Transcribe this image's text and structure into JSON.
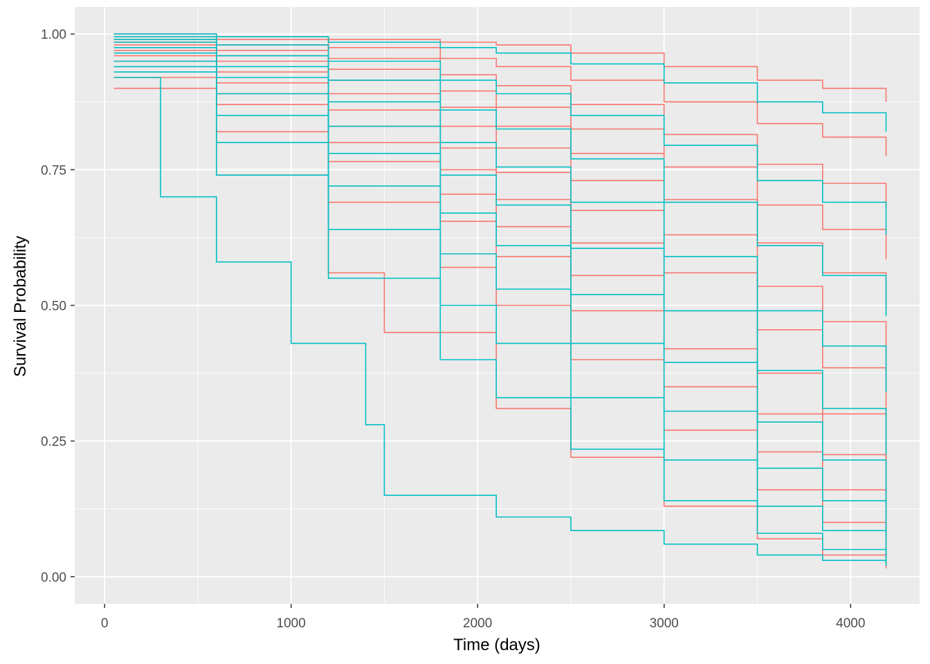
{
  "chart_data": {
    "type": "line",
    "style": "step",
    "xlabel": "Time (days)",
    "ylabel": "Survival Probability",
    "xlim": [
      -160,
      4370
    ],
    "ylim": [
      -0.05,
      1.05
    ],
    "xticks": [
      {
        "value": 0,
        "label": "0"
      },
      {
        "value": 1000,
        "label": "1000"
      },
      {
        "value": 2000,
        "label": "2000"
      },
      {
        "value": 3000,
        "label": "3000"
      },
      {
        "value": 4000,
        "label": "4000"
      }
    ],
    "yticks": [
      {
        "value": 0.0,
        "label": "0.00"
      },
      {
        "value": 0.25,
        "label": "0.25"
      },
      {
        "value": 0.5,
        "label": "0.50"
      },
      {
        "value": 0.75,
        "label": "0.75"
      },
      {
        "value": 1.0,
        "label": "1.00"
      }
    ],
    "grid": true,
    "legend": "none",
    "colors": {
      "panel": "#ebebeb",
      "grid": "#ffffff",
      "group_a": "#f8766d",
      "group_b": "#00bfc4"
    },
    "time_range": [
      50,
      4190
    ],
    "series": [
      {
        "color": "#f8766d",
        "points": [
          [
            50,
            1.0
          ],
          [
            600,
            0.995
          ],
          [
            1200,
            0.99
          ],
          [
            1800,
            0.985
          ],
          [
            2100,
            0.98
          ],
          [
            2500,
            0.965
          ],
          [
            3000,
            0.94
          ],
          [
            3500,
            0.915
          ],
          [
            3850,
            0.9
          ],
          [
            4190,
            0.875
          ]
        ]
      },
      {
        "color": "#f8766d",
        "points": [
          [
            50,
            1.0
          ],
          [
            600,
            0.99
          ],
          [
            1200,
            0.975
          ],
          [
            1800,
            0.955
          ],
          [
            2100,
            0.94
          ],
          [
            2500,
            0.915
          ],
          [
            3000,
            0.875
          ],
          [
            3500,
            0.835
          ],
          [
            3850,
            0.81
          ],
          [
            4190,
            0.775
          ]
        ]
      },
      {
        "color": "#f8766d",
        "points": [
          [
            50,
            0.995
          ],
          [
            600,
            0.98
          ],
          [
            1200,
            0.955
          ],
          [
            1800,
            0.925
          ],
          [
            2100,
            0.905
          ],
          [
            2500,
            0.87
          ],
          [
            3000,
            0.815
          ],
          [
            3500,
            0.76
          ],
          [
            3850,
            0.725
          ],
          [
            4190,
            0.68
          ]
        ]
      },
      {
        "color": "#f8766d",
        "points": [
          [
            50,
            0.99
          ],
          [
            600,
            0.97
          ],
          [
            1200,
            0.935
          ],
          [
            1800,
            0.895
          ],
          [
            2100,
            0.865
          ],
          [
            2500,
            0.825
          ],
          [
            3000,
            0.755
          ],
          [
            3500,
            0.685
          ],
          [
            3850,
            0.64
          ],
          [
            4190,
            0.585
          ]
        ]
      },
      {
        "color": "#f8766d",
        "points": [
          [
            50,
            0.985
          ],
          [
            600,
            0.96
          ],
          [
            1200,
            0.915
          ],
          [
            1800,
            0.865
          ],
          [
            2100,
            0.83
          ],
          [
            2500,
            0.78
          ],
          [
            3000,
            0.695
          ],
          [
            3500,
            0.615
          ],
          [
            3850,
            0.56
          ],
          [
            4190,
            0.495
          ]
        ]
      },
      {
        "color": "#f8766d",
        "points": [
          [
            50,
            0.98
          ],
          [
            600,
            0.95
          ],
          [
            1200,
            0.89
          ],
          [
            1800,
            0.83
          ],
          [
            2100,
            0.79
          ],
          [
            2500,
            0.73
          ],
          [
            3000,
            0.63
          ],
          [
            3500,
            0.535
          ],
          [
            3850,
            0.47
          ],
          [
            4190,
            0.39
          ]
        ]
      },
      {
        "color": "#f8766d",
        "points": [
          [
            50,
            0.97
          ],
          [
            600,
            0.93
          ],
          [
            1200,
            0.86
          ],
          [
            1800,
            0.79
          ],
          [
            2100,
            0.745
          ],
          [
            2500,
            0.675
          ],
          [
            3000,
            0.56
          ],
          [
            3500,
            0.455
          ],
          [
            3850,
            0.385
          ],
          [
            4190,
            0.3
          ]
        ]
      },
      {
        "color": "#f8766d",
        "points": [
          [
            50,
            0.96
          ],
          [
            600,
            0.91
          ],
          [
            1200,
            0.83
          ],
          [
            1800,
            0.75
          ],
          [
            2100,
            0.695
          ],
          [
            2500,
            0.615
          ],
          [
            3000,
            0.49
          ],
          [
            3500,
            0.375
          ],
          [
            3850,
            0.3
          ],
          [
            4190,
            0.21
          ]
        ]
      },
      {
        "color": "#f8766d",
        "points": [
          [
            50,
            0.95
          ],
          [
            600,
            0.89
          ],
          [
            1200,
            0.8
          ],
          [
            1800,
            0.705
          ],
          [
            2100,
            0.645
          ],
          [
            2500,
            0.555
          ],
          [
            3000,
            0.42
          ],
          [
            3500,
            0.3
          ],
          [
            3850,
            0.225
          ],
          [
            4190,
            0.135
          ]
        ]
      },
      {
        "color": "#f8766d",
        "points": [
          [
            50,
            0.94
          ],
          [
            600,
            0.87
          ],
          [
            1200,
            0.765
          ],
          [
            1800,
            0.655
          ],
          [
            2100,
            0.59
          ],
          [
            2500,
            0.49
          ],
          [
            3000,
            0.35
          ],
          [
            3500,
            0.23
          ],
          [
            3850,
            0.16
          ],
          [
            4190,
            0.075
          ]
        ]
      },
      {
        "color": "#f8766d",
        "points": [
          [
            50,
            0.92
          ],
          [
            600,
            0.82
          ],
          [
            1200,
            0.69
          ],
          [
            1800,
            0.57
          ],
          [
            2100,
            0.5
          ],
          [
            2500,
            0.4
          ],
          [
            3000,
            0.27
          ],
          [
            3500,
            0.16
          ],
          [
            3850,
            0.1
          ],
          [
            4190,
            0.035
          ]
        ]
      },
      {
        "color": "#f8766d",
        "points": [
          [
            50,
            0.9
          ],
          [
            600,
            0.74
          ],
          [
            1200,
            0.56
          ],
          [
            1500,
            0.45
          ],
          [
            2100,
            0.31
          ],
          [
            2500,
            0.22
          ],
          [
            3000,
            0.13
          ],
          [
            3500,
            0.07
          ],
          [
            3850,
            0.04
          ],
          [
            4190,
            0.015
          ]
        ]
      },
      {
        "color": "#00bfc4",
        "points": [
          [
            50,
            1.0
          ],
          [
            600,
            0.995
          ],
          [
            1200,
            0.985
          ],
          [
            1800,
            0.975
          ],
          [
            2100,
            0.965
          ],
          [
            2500,
            0.945
          ],
          [
            3000,
            0.91
          ],
          [
            3500,
            0.875
          ],
          [
            3850,
            0.855
          ],
          [
            4190,
            0.82
          ]
        ]
      },
      {
        "color": "#00bfc4",
        "points": [
          [
            50,
            0.995
          ],
          [
            600,
            0.98
          ],
          [
            1200,
            0.95
          ],
          [
            1800,
            0.915
          ],
          [
            2100,
            0.89
          ],
          [
            2500,
            0.85
          ],
          [
            3000,
            0.795
          ],
          [
            3500,
            0.73
          ],
          [
            3850,
            0.69
          ],
          [
            4190,
            0.63
          ]
        ]
      },
      {
        "color": "#00bfc4",
        "points": [
          [
            50,
            0.99
          ],
          [
            600,
            0.96
          ],
          [
            1200,
            0.915
          ],
          [
            1800,
            0.86
          ],
          [
            2100,
            0.825
          ],
          [
            2500,
            0.77
          ],
          [
            3000,
            0.69
          ],
          [
            3500,
            0.61
          ],
          [
            3850,
            0.555
          ],
          [
            4190,
            0.48
          ]
        ]
      },
      {
        "color": "#00bfc4",
        "points": [
          [
            50,
            0.985
          ],
          [
            600,
            0.94
          ],
          [
            1200,
            0.875
          ],
          [
            1800,
            0.8
          ],
          [
            2100,
            0.755
          ],
          [
            2500,
            0.69
          ],
          [
            3000,
            0.59
          ],
          [
            3500,
            0.49
          ],
          [
            3850,
            0.425
          ],
          [
            4190,
            0.34
          ]
        ]
      },
      {
        "color": "#00bfc4",
        "points": [
          [
            50,
            0.975
          ],
          [
            600,
            0.92
          ],
          [
            1200,
            0.83
          ],
          [
            1800,
            0.74
          ],
          [
            2100,
            0.685
          ],
          [
            2500,
            0.605
          ],
          [
            3000,
            0.49
          ],
          [
            3500,
            0.38
          ],
          [
            3850,
            0.31
          ],
          [
            4190,
            0.225
          ]
        ]
      },
      {
        "color": "#00bfc4",
        "points": [
          [
            50,
            0.965
          ],
          [
            600,
            0.89
          ],
          [
            1200,
            0.78
          ],
          [
            1800,
            0.67
          ],
          [
            2100,
            0.61
          ],
          [
            2500,
            0.52
          ],
          [
            3000,
            0.395
          ],
          [
            3500,
            0.285
          ],
          [
            3850,
            0.215
          ],
          [
            4190,
            0.135
          ]
        ]
      },
      {
        "color": "#00bfc4",
        "points": [
          [
            50,
            0.95
          ],
          [
            600,
            0.85
          ],
          [
            1200,
            0.72
          ],
          [
            1800,
            0.595
          ],
          [
            2100,
            0.53
          ],
          [
            2500,
            0.43
          ],
          [
            3000,
            0.305
          ],
          [
            3500,
            0.2
          ],
          [
            3850,
            0.14
          ],
          [
            4190,
            0.08
          ]
        ]
      },
      {
        "color": "#00bfc4",
        "points": [
          [
            50,
            0.94
          ],
          [
            600,
            0.8
          ],
          [
            1200,
            0.64
          ],
          [
            1800,
            0.5
          ],
          [
            2100,
            0.43
          ],
          [
            2500,
            0.33
          ],
          [
            3000,
            0.215
          ],
          [
            3500,
            0.13
          ],
          [
            3850,
            0.085
          ],
          [
            4190,
            0.045
          ]
        ]
      },
      {
        "color": "#00bfc4",
        "points": [
          [
            50,
            0.93
          ],
          [
            600,
            0.74
          ],
          [
            1200,
            0.55
          ],
          [
            1800,
            0.4
          ],
          [
            2100,
            0.33
          ],
          [
            2500,
            0.235
          ],
          [
            3000,
            0.14
          ],
          [
            3500,
            0.08
          ],
          [
            3850,
            0.05
          ],
          [
            4190,
            0.025
          ]
        ]
      },
      {
        "color": "#00bfc4",
        "points": [
          [
            50,
            0.92
          ],
          [
            300,
            0.7
          ],
          [
            600,
            0.58
          ],
          [
            1000,
            0.43
          ],
          [
            1400,
            0.28
          ],
          [
            1500,
            0.15
          ],
          [
            2100,
            0.11
          ],
          [
            2500,
            0.085
          ],
          [
            3000,
            0.06
          ],
          [
            3500,
            0.04
          ],
          [
            3850,
            0.03
          ],
          [
            4190,
            0.02
          ]
        ]
      }
    ]
  }
}
